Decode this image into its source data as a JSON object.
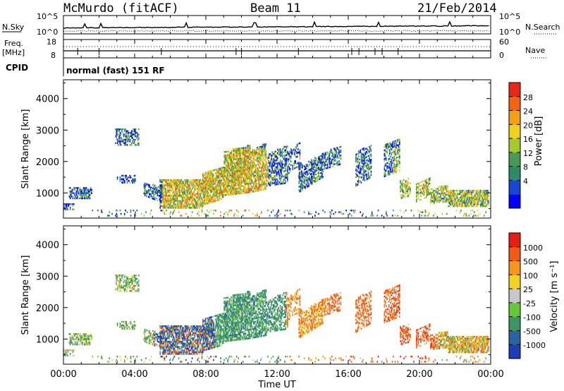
{
  "header": {
    "station": "McMurdo (fitACF)",
    "beam": "Beam 11",
    "date": "21/Feb/2014"
  },
  "noise_panel": {
    "left_label": "N.Sky",
    "right_label": "N.Search",
    "left_ticks": [
      "10^5",
      "10^0"
    ],
    "right_ticks": [
      "10^5",
      "10^0"
    ]
  },
  "freq_panel": {
    "left_label_1": "Freq.",
    "left_label_2": "[MHz]",
    "right_label": "Nave",
    "left_ticks": [
      "18",
      "8"
    ],
    "right_ticks": [
      "60",
      "0"
    ]
  },
  "cpid_panel": {
    "label": "CPID",
    "mode": "normal (fast) 151 RF"
  },
  "chart_data": [
    {
      "type": "heatmap",
      "name": "power",
      "ylabel": "Slant Range [km]",
      "ylim": [
        200,
        4600
      ],
      "y_ticks": [
        "1000",
        "2000",
        "3000",
        "4000"
      ],
      "colorbar_label": "Power [dB]",
      "colorbar_ticks": [
        "28",
        "24",
        "20",
        "16",
        "12",
        "8",
        "4"
      ],
      "colors": [
        "#0000ff",
        "#1a45d0",
        "#2e8a66",
        "#4a9a55",
        "#a8c832",
        "#f0d21e",
        "#f5a014",
        "#f06414",
        "#e62814"
      ]
    },
    {
      "type": "heatmap",
      "name": "velocity",
      "ylabel": "Slant Range [km]",
      "ylim": [
        200,
        4600
      ],
      "y_ticks": [
        "1000",
        "2000",
        "3000",
        "4000"
      ],
      "colorbar_label": "Velocity [m s⁻¹]",
      "colorbar_ticks": [
        "1000",
        "500",
        "100",
        "25",
        "-25",
        "-100",
        "-500",
        "-1000"
      ],
      "colors": [
        "#1e3cb4",
        "#2864a0",
        "#3c9664",
        "#64c83c",
        "#c8c8c8",
        "#f0d228",
        "#f5961e",
        "#f05a14",
        "#e61e14"
      ]
    }
  ],
  "x_axis": {
    "label": "Time UT",
    "ticks": [
      "00:00",
      "04:00",
      "08:00",
      "12:00",
      "16:00",
      "20:00",
      "00:00"
    ]
  }
}
